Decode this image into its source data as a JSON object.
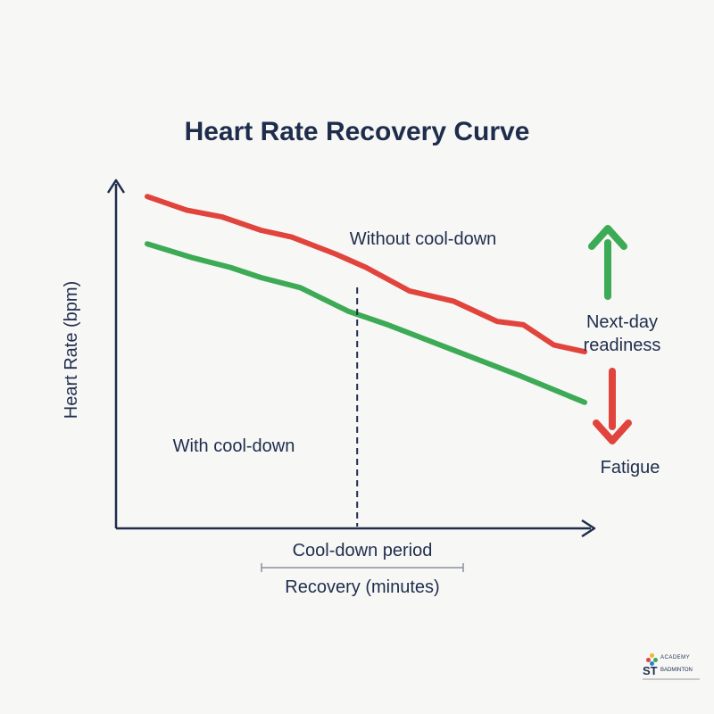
{
  "chart_data": {
    "type": "line",
    "title": "Heart Rate Recovery Curve",
    "xlabel": "Recovery (minutes)",
    "ylabel": "Heart Rate (bpm)",
    "grid": false,
    "xlim": [
      0,
      10
    ],
    "ylim": [
      0,
      100
    ],
    "series": [
      {
        "name": "Without cool-down",
        "color": "#e0443c",
        "x": [
          0,
          0.9,
          1.7,
          2.6,
          3.3,
          4.3,
          5.0,
          6.0,
          7.0,
          8.0,
          8.6,
          9.3,
          10.0
        ],
        "y": [
          92,
          88,
          86,
          82,
          80,
          75,
          71,
          64,
          61,
          55,
          54,
          48,
          46
        ]
      },
      {
        "name": "With cool-down",
        "color": "#3daa55",
        "x": [
          0,
          1.0,
          1.9,
          2.6,
          3.5,
          4.6,
          5.5,
          6.5,
          7.5,
          8.5,
          10.0
        ],
        "y": [
          78,
          74,
          71,
          68,
          65,
          58,
          54,
          49,
          44,
          39,
          31
        ]
      }
    ],
    "annotations": {
      "marker_x": 4.8,
      "marker_label": "Cool-down period",
      "without_label": "Without cool-down",
      "with_label": "With cool-down",
      "up_label_line1": "Next-day",
      "up_label_line2": "readiness",
      "down_label": "Fatigue"
    },
    "colors": {
      "axis": "#1f2d4d",
      "up_arrow": "#3daa55",
      "down_arrow": "#e0443c",
      "bracket": "#8a8f9c"
    }
  }
}
